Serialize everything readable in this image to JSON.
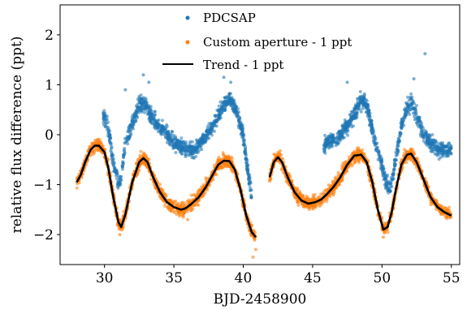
{
  "chart_data": {
    "type": "scatter",
    "xlabel": "BJD-2458900",
    "ylabel": "relative flux difference (ppt)",
    "xlim": [
      26.8,
      55.6
    ],
    "ylim": [
      -2.6,
      2.6
    ],
    "x_ticks": [
      30,
      35,
      40,
      45,
      50,
      55
    ],
    "y_ticks": [
      -2,
      -1,
      0,
      1,
      2
    ],
    "grid": false,
    "legend_position": "top-center",
    "colors": {
      "pdcsap": "#1f77b4",
      "custom": "#ff7f0e",
      "trend": "#000000"
    },
    "series": [
      {
        "name": "PDCSAP",
        "style": "points",
        "segments": [
          {
            "x": [
              29.9,
              30.3,
              30.6,
              31.0,
              31.2,
              31.5,
              32.0,
              32.5,
              32.8,
              33.2,
              33.8,
              34.5,
              35.0,
              35.5,
              36.0,
              36.5,
              37.0,
              37.5,
              38.0,
              38.5,
              39.0,
              39.5,
              40.0,
              40.3,
              40.6
            ],
            "y": [
              0.4,
              0.1,
              -0.5,
              -1.0,
              -0.85,
              -0.2,
              0.2,
              0.6,
              0.65,
              0.45,
              0.2,
              0.0,
              -0.15,
              -0.25,
              -0.3,
              -0.3,
              -0.15,
              0.05,
              0.3,
              0.55,
              0.75,
              0.5,
              0.0,
              -0.7,
              -1.2
            ]
          },
          {
            "x": [
              45.8,
              46.2,
              46.8,
              47.2,
              47.8,
              48.3,
              48.7,
              49.0,
              49.3,
              49.7,
              50.2,
              50.5,
              50.8,
              51.1,
              51.5,
              51.9,
              52.2,
              52.6,
              53.0,
              53.5,
              54.0,
              54.5,
              55.0
            ],
            "y": [
              -0.2,
              -0.15,
              -0.05,
              0.05,
              0.3,
              0.6,
              0.7,
              0.5,
              0.1,
              -0.3,
              -0.9,
              -1.1,
              -0.8,
              -0.3,
              0.3,
              0.6,
              0.6,
              0.3,
              0.0,
              -0.15,
              -0.3,
              -0.3,
              -0.3
            ]
          }
        ],
        "outliers": [
          [
            32.8,
            1.2
          ],
          [
            33.2,
            1.05
          ],
          [
            38.6,
            1.15
          ],
          [
            39.1,
            1.05
          ],
          [
            53.1,
            1.62
          ],
          [
            52.3,
            1.12
          ],
          [
            47.5,
            1.05
          ],
          [
            31.5,
            0.9
          ],
          [
            40.1,
            -1.4
          ]
        ]
      },
      {
        "name": "Custom aperture - 1 ppt",
        "style": "points",
        "segments": [
          {
            "x": [
              28.0,
              28.3,
              28.6,
              29.0,
              29.3,
              29.6,
              30.0,
              30.3,
              30.6,
              31.0,
              31.2,
              31.5,
              32.0,
              32.5,
              32.8,
              33.1,
              33.5,
              34.0,
              34.5,
              35.0,
              35.5,
              35.8,
              36.2,
              36.8,
              37.3,
              37.8,
              38.2,
              38.6,
              39.0,
              39.4,
              39.8,
              40.2,
              40.6,
              40.9
            ],
            "y": [
              -0.95,
              -0.8,
              -0.55,
              -0.3,
              -0.22,
              -0.22,
              -0.35,
              -0.7,
              -1.2,
              -1.75,
              -1.85,
              -1.6,
              -0.95,
              -0.55,
              -0.47,
              -0.55,
              -0.85,
              -1.15,
              -1.35,
              -1.45,
              -1.5,
              -1.48,
              -1.4,
              -1.25,
              -1.05,
              -0.8,
              -0.6,
              -0.52,
              -0.53,
              -0.7,
              -1.1,
              -1.6,
              -1.95,
              -2.05
            ]
          },
          {
            "x": [
              41.9,
              42.2,
              42.5,
              42.8,
              43.2,
              43.7,
              44.2,
              44.7,
              45.2,
              45.6,
              46.0,
              46.5,
              47.0,
              47.5,
              48.0,
              48.5,
              48.9,
              49.3,
              49.7,
              50.1,
              50.4,
              50.7,
              51.0,
              51.4,
              51.8,
              52.1,
              52.5,
              53.0,
              53.5,
              54.0,
              54.5,
              55.0
            ],
            "y": [
              -0.85,
              -0.55,
              -0.45,
              -0.55,
              -0.85,
              -1.15,
              -1.32,
              -1.38,
              -1.35,
              -1.3,
              -1.2,
              -1.05,
              -0.85,
              -0.6,
              -0.42,
              -0.4,
              -0.55,
              -0.95,
              -1.5,
              -1.9,
              -1.85,
              -1.55,
              -1.1,
              -0.6,
              -0.4,
              -0.38,
              -0.55,
              -0.9,
              -1.25,
              -1.45,
              -1.55,
              -1.62
            ]
          }
        ],
        "outliers": [
          [
            40.7,
            -2.45
          ],
          [
            40.9,
            -2.3
          ],
          [
            31.1,
            -2.0
          ],
          [
            50.1,
            -2.05
          ],
          [
            36.0,
            -1.7
          ]
        ]
      },
      {
        "name": "Trend - 1 ppt",
        "style": "line",
        "segments": [
          {
            "x": [
              28.0,
              28.3,
              28.6,
              29.0,
              29.3,
              29.6,
              30.0,
              30.3,
              30.6,
              31.0,
              31.2,
              31.5,
              32.0,
              32.5,
              32.8,
              33.1,
              33.5,
              34.0,
              34.5,
              35.0,
              35.5,
              35.8,
              36.2,
              36.8,
              37.3,
              37.8,
              38.2,
              38.6,
              39.0,
              39.4,
              39.8,
              40.2,
              40.6,
              40.9
            ],
            "y": [
              -0.95,
              -0.8,
              -0.55,
              -0.3,
              -0.22,
              -0.22,
              -0.35,
              -0.7,
              -1.2,
              -1.75,
              -1.85,
              -1.6,
              -0.95,
              -0.55,
              -0.47,
              -0.55,
              -0.85,
              -1.15,
              -1.35,
              -1.45,
              -1.5,
              -1.48,
              -1.4,
              -1.25,
              -1.05,
              -0.8,
              -0.6,
              -0.52,
              -0.53,
              -0.7,
              -1.1,
              -1.6,
              -1.95,
              -2.05
            ]
          },
          {
            "x": [
              41.9,
              42.2,
              42.5,
              42.8,
              43.2,
              43.7,
              44.2,
              44.7,
              45.2,
              45.6,
              46.0,
              46.5,
              47.0,
              47.5,
              48.0,
              48.5,
              48.9,
              49.3,
              49.7,
              50.1,
              50.4,
              50.7,
              51.0,
              51.4,
              51.8,
              52.1,
              52.5,
              53.0,
              53.5,
              54.0,
              54.5,
              55.0
            ],
            "y": [
              -0.85,
              -0.55,
              -0.45,
              -0.55,
              -0.85,
              -1.15,
              -1.32,
              -1.38,
              -1.35,
              -1.3,
              -1.2,
              -1.05,
              -0.85,
              -0.6,
              -0.42,
              -0.4,
              -0.55,
              -0.95,
              -1.5,
              -1.9,
              -1.85,
              -1.55,
              -1.1,
              -0.6,
              -0.4,
              -0.38,
              -0.55,
              -0.9,
              -1.25,
              -1.45,
              -1.55,
              -1.62
            ]
          }
        ]
      }
    ]
  }
}
